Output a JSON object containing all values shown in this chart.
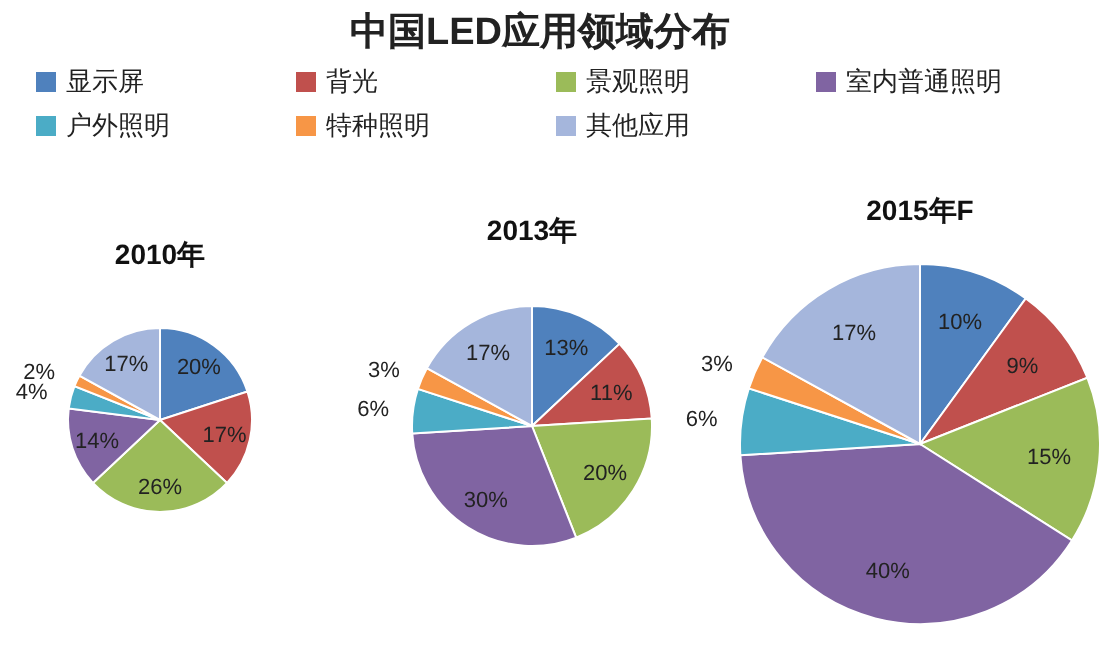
{
  "chart_data": [
    {
      "type": "other",
      "title": "中国LED应用领域分布"
    },
    {
      "type": "pie",
      "title": "2010年",
      "legend": "top",
      "categories": [
        "显示屏",
        "背光",
        "景观照明",
        "室内普通照明",
        "户外照明",
        "特种照明",
        "其他应用"
      ],
      "values": [
        20,
        17,
        26,
        14,
        4,
        2,
        17
      ],
      "value_labels": [
        "20%",
        "17%",
        "26%",
        "14%",
        "4%",
        "2%",
        "17%"
      ],
      "colors": [
        "#4f81bd",
        "#c0504d",
        "#9bbb59",
        "#8064a2",
        "#4bacc6",
        "#f79646",
        "#a5b6dc"
      ]
    },
    {
      "type": "pie",
      "title": "2013年",
      "categories": [
        null,
        null,
        null,
        null,
        null,
        null,
        null
      ],
      "values": [
        13,
        11,
        20,
        30,
        6,
        3,
        17
      ],
      "value_labels": [
        "13%",
        "11%",
        "20%",
        "30%",
        "6%",
        "3%",
        "17%"
      ],
      "colors": [
        "#4f81bd",
        "#c0504d",
        "#9bbb59",
        "#8064a2",
        "#4bacc6",
        "#f79646",
        "#a5b6dc"
      ]
    },
    {
      "type": "pie",
      "title": "2015年F",
      "categories": [
        null,
        null,
        null,
        null,
        null,
        null,
        null
      ],
      "values": [
        10,
        9,
        15,
        40,
        6,
        3,
        17
      ],
      "value_labels": [
        "10%",
        "9%",
        "15%",
        "40%",
        "6%",
        "3%",
        "17%"
      ],
      "colors": [
        "#4f81bd",
        "#c0504d",
        "#9bbb59",
        "#8064a2",
        "#4bacc6",
        "#f79646",
        "#a5b6dc"
      ]
    }
  ]
}
